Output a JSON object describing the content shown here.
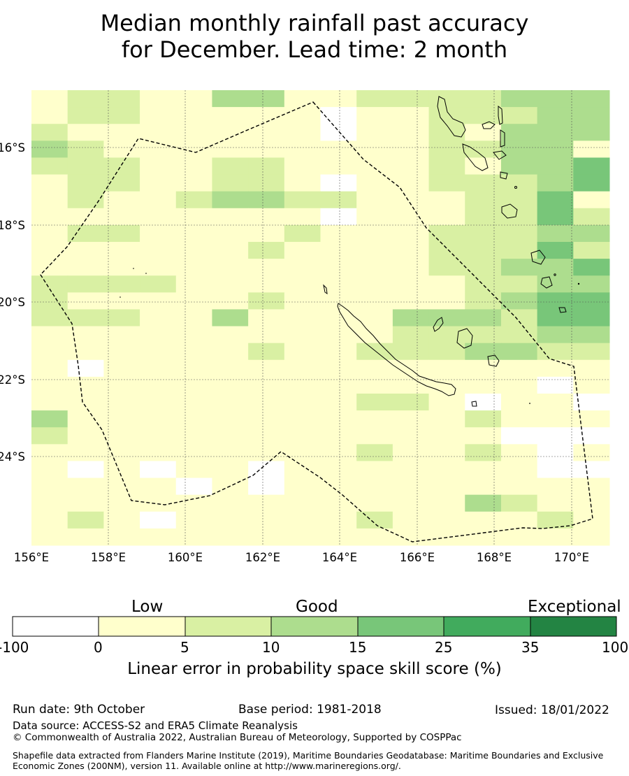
{
  "title": {
    "line1": "Median monthly rainfall past accuracy",
    "line2": "for December. Lead time: 2 month"
  },
  "map": {
    "lon_range": [
      156,
      171
    ],
    "lat_range": [
      -26.7,
      -14.8
    ],
    "lon_ticks": [
      "156°E",
      "158°E",
      "160°E",
      "162°E",
      "164°E",
      "166°E",
      "168°E",
      "170°E"
    ],
    "lat_ticks": [
      "16°S",
      "18°S",
      "20°S",
      "22°S",
      "24°S"
    ],
    "grid_rows": [
      "1221133112222333",
      "1221111101122233",
      "2111111101121333",
      "3211111111122331",
      "2221122111121334",
      "1221122101122234",
      "1211233221112241",
      "1111111101112242",
      "1221111211122233",
      "1111112111122242",
      "1111111111122334",
      "2222111111112233",
      "2111112111112344",
      "2221131111333244",
      "1111111111222233",
      "1111112112223322",
      "1011111111111111",
      "1111111111111101",
      "1111111112210110",
      "3111111111112111",
      "2111111111111000",
      "1111111112112101",
      "1010110111111100",
      "1111010111111111",
      "1111111111113211",
      "1210111112111121",
      "1111111111111111"
    ],
    "colors": [
      "#ffffff",
      "#ffffcc",
      "#d9f0a3",
      "#addd8e",
      "#78c679",
      "#41ab5d",
      "#238443"
    ]
  },
  "colorbar": {
    "categories": [
      "Low",
      "Good",
      "Exceptional"
    ],
    "ticks": [
      "-100",
      "0",
      "5",
      "10",
      "15",
      "25",
      "35",
      "100"
    ],
    "title": "Linear error in probability space skill score (%)"
  },
  "footer": {
    "run_date": "Run date: 9th October",
    "base_period": "Base period: 1981-2018",
    "issued": "Issued: 18/01/2022",
    "data_source": "Data source: ACCESS-S2 and ERA5 Climate Reanalysis",
    "copyright": "© Commonwealth of Australia 2022, Australian Bureau of Meteorology, Supported by COSPPac",
    "shapefile": "Shapefile data extracted from Flanders Marine Institute (2019), Maritime Boundaries Geodatabase: Maritime Boundaries and Exclusive Economic Zones (200NM), version 11. Available online at http://www.marineregions.org/."
  }
}
